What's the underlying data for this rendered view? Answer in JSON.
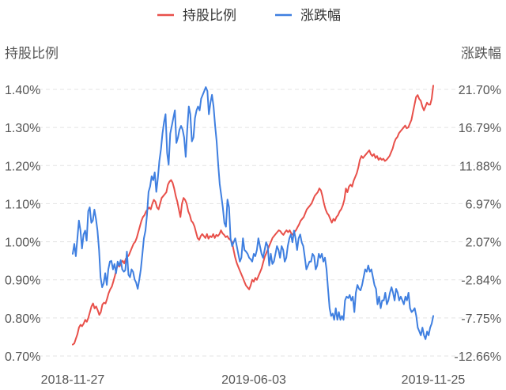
{
  "chart_data": {
    "type": "line",
    "title": "",
    "legend": {
      "placement": "top-center"
    },
    "grid": true,
    "x_ticks": [
      "2018-11-27",
      "2019-06-03",
      "2019-11-25"
    ],
    "y_left": {
      "label": "持股比例",
      "ticks": [
        "1.40%",
        "1.30%",
        "1.20%",
        "1.10%",
        "1.00%",
        "0.90%",
        "0.80%",
        "0.70%"
      ],
      "range": [
        0.7,
        1.4
      ]
    },
    "y_right": {
      "label": "涨跌幅",
      "ticks": [
        "21.70%",
        "16.79%",
        "11.88%",
        "6.97%",
        "2.07%",
        "-2.84%",
        "-7.75%",
        "-12.66%"
      ],
      "range": [
        -12.66,
        21.7
      ]
    },
    "series": [
      {
        "name": "持股比例",
        "color": "#e8504a",
        "axis": "left",
        "values": [
          0.73,
          0.733,
          0.745,
          0.757,
          0.775,
          0.782,
          0.778,
          0.785,
          0.795,
          0.79,
          0.8,
          0.815,
          0.83,
          0.838,
          0.825,
          0.83,
          0.82,
          0.808,
          0.815,
          0.835,
          0.84,
          0.838,
          0.85,
          0.865,
          0.875,
          0.882,
          0.895,
          0.91,
          0.928,
          0.94,
          0.935,
          0.945,
          0.95,
          0.943,
          0.955,
          0.96,
          0.965,
          0.975,
          0.985,
          0.995,
          1.0,
          1.01,
          1.025,
          1.04,
          1.055,
          1.065,
          1.07,
          1.08,
          1.085,
          1.09,
          1.085,
          1.1,
          1.11,
          1.105,
          1.09,
          1.085,
          1.1,
          1.115,
          1.12,
          1.125,
          1.13,
          1.15,
          1.158,
          1.162,
          1.155,
          1.14,
          1.12,
          1.105,
          1.085,
          1.065,
          1.1,
          1.115,
          1.11,
          1.1,
          1.08,
          1.07,
          1.055,
          1.05,
          1.04,
          1.025,
          1.01,
          1.005,
          1.015,
          1.02,
          1.015,
          1.01,
          1.02,
          1.008,
          1.015,
          1.012,
          1.02,
          1.01,
          1.018,
          1.015,
          1.02,
          1.03,
          1.022,
          1.018,
          1.012,
          1.015,
          1.008,
          1.005,
          1.0,
          0.98,
          0.96,
          0.945,
          0.935,
          0.925,
          0.915,
          0.905,
          0.895,
          0.885,
          0.88,
          0.875,
          0.885,
          0.9,
          0.895,
          0.905,
          0.9,
          0.91,
          0.92,
          0.93,
          0.945,
          0.96,
          0.97,
          0.98,
          0.99,
          1.0,
          1.01,
          1.015,
          1.02,
          1.025,
          1.03,
          1.028,
          1.022,
          1.018,
          1.025,
          1.03,
          1.025,
          1.03,
          1.022,
          1.018,
          1.025,
          1.03,
          1.038,
          1.045,
          1.055,
          1.06,
          1.065,
          1.075,
          1.085,
          1.09,
          1.095,
          1.1,
          1.11,
          1.12,
          1.125,
          1.13,
          1.14,
          1.135,
          1.12,
          1.1,
          1.085,
          1.075,
          1.07,
          1.06,
          1.05,
          1.06,
          1.055,
          1.065,
          1.07,
          1.08,
          1.085,
          1.095,
          1.11,
          1.14,
          1.13,
          1.145,
          1.15,
          1.145,
          1.16,
          1.17,
          1.18,
          1.195,
          1.215,
          1.225,
          1.22,
          1.225,
          1.23,
          1.235,
          1.24,
          1.23,
          1.225,
          1.23,
          1.22,
          1.225,
          1.215,
          1.22,
          1.215,
          1.218,
          1.212,
          1.215,
          1.22,
          1.225,
          1.235,
          1.245,
          1.26,
          1.27,
          1.275,
          1.285,
          1.29,
          1.295,
          1.3,
          1.305,
          1.298,
          1.3,
          1.31,
          1.32,
          1.34,
          1.36,
          1.38,
          1.385,
          1.375,
          1.37,
          1.355,
          1.345,
          1.355,
          1.365,
          1.36,
          1.36,
          1.375,
          1.41
        ]
      },
      {
        "name": "涨跌幅",
        "color": "#3f7fe0",
        "axis": "right",
        "values": [
          0.5,
          1.8,
          0.2,
          2.5,
          4.8,
          3.5,
          1.2,
          3.0,
          3.5,
          2.2,
          6.0,
          6.5,
          4.5,
          4.8,
          6.2,
          5.0,
          3.5,
          1.0,
          -2.5,
          -3.8,
          -3.3,
          -2.0,
          -3.5,
          -1.5,
          -0.5,
          -0.4,
          -1.5,
          -0.8,
          -2.0,
          -0.5,
          -1.0,
          -0.3,
          -1.5,
          -1.8,
          -1.6,
          0.8,
          -2.2,
          -2.5,
          -1.5,
          -1.8,
          -2.8,
          -3.2,
          -4.0,
          -2.8,
          -1.5,
          0.5,
          2.5,
          3.5,
          5.5,
          8.5,
          9.2,
          10.5,
          10.0,
          11.0,
          8.5,
          10.2,
          12.5,
          14.0,
          16.0,
          17.5,
          18.5,
          13.5,
          12.0,
          16.0,
          17.0,
          18.0,
          19.0,
          14.8,
          15.5,
          16.5,
          17.0,
          16.5,
          15.5,
          13.0,
          16.5,
          19.5,
          18.5,
          15.0,
          15.5,
          18.0,
          19.0,
          19.5,
          19.0,
          20.5,
          21.0,
          21.5,
          22.0,
          21.5,
          18.5,
          20.0,
          21.0,
          19.5,
          17.0,
          15.0,
          12.0,
          9.5,
          8.0,
          6.5,
          4.5,
          4.0,
          7.5,
          6.5,
          2.5,
          1.5,
          2.0,
          2.5,
          1.5,
          0.5,
          -0.5,
          0.0,
          2.5,
          1.0,
          0.8,
          0.5,
          0.0,
          -0.2,
          -0.5,
          0.5,
          0.2,
          1.0,
          2.5,
          1.5,
          0.5,
          0.0,
          1.0,
          2.0,
          1.5,
          -1.0,
          0.5,
          -0.8,
          -0.5,
          0.5,
          1.5,
          1.0,
          0.0,
          1.5,
          1.0,
          -0.5,
          0.0,
          1.5,
          2.5,
          3.0,
          2.0,
          3.5,
          2.5,
          1.0,
          2.5,
          3.0,
          2.0,
          1.5,
          0.0,
          -1.5,
          -1.0,
          -0.5,
          -0.5,
          0.5,
          0.2,
          -1.5,
          -1.0,
          0.5,
          0.0,
          0.5,
          -0.5,
          0.0,
          -1.5,
          -4.0,
          -6.5,
          -7.5,
          -7.2,
          -8.0,
          -6.5,
          -8.0,
          -7.0,
          -8.0,
          -7.5,
          -8.0,
          -5.5,
          -5.0,
          -5.2,
          -4.8,
          -5.5,
          -5.0,
          -7.0,
          -4.5,
          -3.5,
          -4.0,
          -4.2,
          -3.5,
          -2.5,
          -1.5,
          -1.8,
          -1.0,
          -1.8,
          -1.5,
          -2.5,
          -3.5,
          -4.0,
          -6.0,
          -5.0,
          -6.5,
          -5.5,
          -5.5,
          -4.5,
          -6.0,
          -5.5,
          -4.5,
          -3.8,
          -4.5,
          -5.5,
          -4.0,
          -4.5,
          -5.5,
          -5.0,
          -5.5,
          -6.0,
          -5.0,
          -5.5,
          -4.5,
          -6.5,
          -7.0,
          -6.8,
          -6.5,
          -7.5,
          -9.0,
          -9.5,
          -10.0,
          -9.0,
          -10.0,
          -10.5,
          -9.5,
          -10.0,
          -9.0,
          -8.5,
          -7.5
        ]
      }
    ]
  }
}
